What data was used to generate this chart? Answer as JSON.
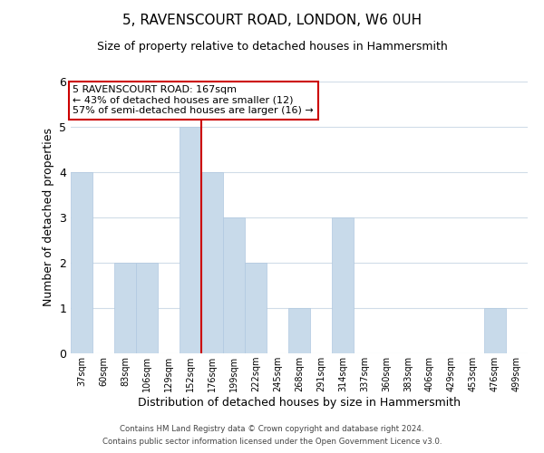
{
  "title": "5, RAVENSCOURT ROAD, LONDON, W6 0UH",
  "subtitle": "Size of property relative to detached houses in Hammersmith",
  "xlabel": "Distribution of detached houses by size in Hammersmith",
  "ylabel": "Number of detached properties",
  "bar_color": "#c8daea",
  "bar_edge_color": "#b0c8e0",
  "bin_labels": [
    "37sqm",
    "60sqm",
    "83sqm",
    "106sqm",
    "129sqm",
    "152sqm",
    "176sqm",
    "199sqm",
    "222sqm",
    "245sqm",
    "268sqm",
    "291sqm",
    "314sqm",
    "337sqm",
    "360sqm",
    "383sqm",
    "406sqm",
    "429sqm",
    "453sqm",
    "476sqm",
    "499sqm"
  ],
  "bar_heights": [
    4,
    0,
    2,
    2,
    0,
    5,
    4,
    3,
    2,
    0,
    1,
    0,
    3,
    0,
    0,
    0,
    0,
    0,
    0,
    1,
    0
  ],
  "ylim": [
    0,
    6
  ],
  "yticks": [
    0,
    1,
    2,
    3,
    4,
    5,
    6
  ],
  "vline_x": 5.5,
  "vline_color": "#cc0000",
  "annotation_line1": "5 RAVENSCOURT ROAD: 167sqm",
  "annotation_line2": "← 43% of detached houses are smaller (12)",
  "annotation_line3": "57% of semi-detached houses are larger (16) →",
  "annotation_box_color": "#ffffff",
  "annotation_box_edge": "#cc0000",
  "footer_line1": "Contains HM Land Registry data © Crown copyright and database right 2024.",
  "footer_line2": "Contains public sector information licensed under the Open Government Licence v3.0.",
  "background_color": "#ffffff",
  "grid_color": "#d0dce8",
  "title_fontsize": 11,
  "subtitle_fontsize": 9,
  "xlabel_fontsize": 9,
  "ylabel_fontsize": 9
}
